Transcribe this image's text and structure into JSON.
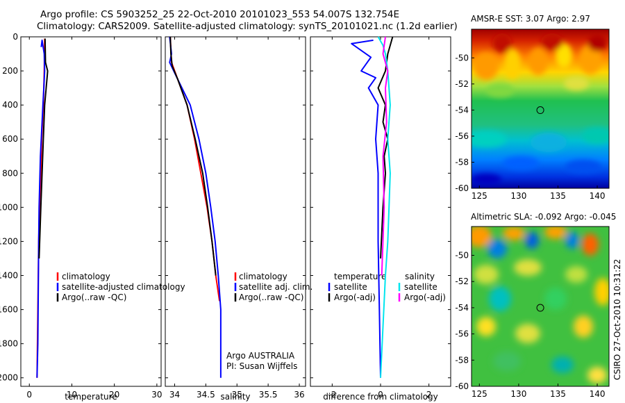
{
  "title": {
    "line1": "Argo profile: CS 5903252_25 22-Oct-2010 20101023_553 54.007S 132.754E",
    "line2": "Climatology: CARS2009. Satellite-adjusted climatology: synTS_20101021.nc (1.2d earlier)"
  },
  "side_label": "CSIRO 27-Oct-2010 10:31:22",
  "colors": {
    "climatology": "#ff0000",
    "satellite": "#0000ff",
    "argo": "#000000",
    "salinity_satellite": "#00e5ee",
    "salinity_argo": "#ff00ff",
    "marker": "#000000"
  },
  "chart_data": [
    {
      "type": "line",
      "panel": "temperature",
      "xlabel": "temperature",
      "ylabel": "",
      "xlim": [
        -2,
        31
      ],
      "ylim": [
        2050,
        0
      ],
      "xticks": [
        0,
        10,
        20,
        30
      ],
      "yticks": [
        0,
        200,
        400,
        600,
        800,
        1000,
        1200,
        1400,
        1600,
        1800,
        2000
      ],
      "series": [
        {
          "name": "climatology",
          "x": [
            3.6,
            3.5,
            3.4,
            3.3,
            3.1,
            2.9,
            2.7,
            2.4,
            2.2,
            2.1,
            2.0,
            1.9,
            1.8
          ],
          "y": [
            10,
            200,
            300,
            400,
            500,
            600,
            800,
            1000,
            1200,
            1400,
            1600,
            1800,
            2000
          ]
        },
        {
          "name": "satellite-adjusted climatology",
          "x": [
            2.8,
            3.0,
            3.5,
            3.6,
            3.4,
            3.2,
            3.0,
            2.6,
            2.3,
            2.2,
            2.1,
            2.0,
            1.8
          ],
          "y": [
            60,
            20,
            100,
            200,
            300,
            400,
            500,
            700,
            1000,
            1200,
            1500,
            1800,
            2000
          ]
        },
        {
          "name": "Argo(..raw -QC)",
          "x": [
            3.7,
            3.8,
            4.3,
            4.2,
            3.6,
            3.3,
            3.0,
            2.7,
            2.3
          ],
          "y": [
            10,
            150,
            200,
            230,
            400,
            600,
            800,
            1000,
            1300
          ]
        }
      ],
      "legend": {
        "position": "lower-right",
        "entries": [
          "climatology",
          "satellite-adjusted climatology",
          "Argo(..raw -QC)"
        ]
      }
    },
    {
      "type": "line",
      "panel": "salinity",
      "xlabel": "salinity",
      "xlim": [
        33.85,
        36.1
      ],
      "ylim": [
        2050,
        0
      ],
      "xticks": [
        34,
        34.5,
        35,
        35.5,
        36
      ],
      "series": [
        {
          "name": "climatology",
          "x": [
            33.93,
            33.95,
            34.05,
            34.2,
            34.32,
            34.42,
            34.52,
            34.6,
            34.66,
            34.72
          ],
          "y": [
            0,
            150,
            250,
            400,
            600,
            800,
            1000,
            1200,
            1400,
            1550
          ]
        },
        {
          "name": "satellite adj. clim.",
          "x": [
            33.92,
            33.95,
            33.92,
            34.05,
            34.25,
            34.39,
            34.5,
            34.58,
            34.65,
            34.7,
            34.74,
            34.74,
            34.74
          ],
          "y": [
            0,
            100,
            150,
            250,
            400,
            600,
            800,
            1000,
            1200,
            1400,
            1600,
            1800,
            2000
          ]
        },
        {
          "name": "Argo(..raw -QC)",
          "x": [
            33.93,
            33.94,
            33.96,
            34.05,
            34.2,
            34.33,
            34.45,
            34.53,
            34.6,
            34.66
          ],
          "y": [
            0,
            100,
            170,
            250,
            400,
            600,
            800,
            1000,
            1200,
            1400
          ]
        }
      ],
      "legend": {
        "position": "lower-right",
        "entries": [
          "climatology",
          "satellite adj. clim.",
          "Argo(..raw -QC)"
        ]
      },
      "annotations": [
        "Argo AUSTRALIA",
        "PI: Susan Wijffels"
      ]
    },
    {
      "type": "line",
      "panel": "difference",
      "xlabel": "difference from climatology",
      "xlim": [
        -2.9,
        2.9
      ],
      "ylim": [
        2050,
        0
      ],
      "xticks": [
        -2,
        0,
        2
      ],
      "series": [
        {
          "name": "temperature satellite",
          "x": [
            -0.3,
            -1.2,
            -0.4,
            -0.8,
            -0.2,
            -0.5,
            -0.1,
            -0.2,
            -0.1,
            -0.1,
            -0.05,
            0.0
          ],
          "y": [
            20,
            40,
            120,
            200,
            240,
            300,
            400,
            600,
            800,
            1200,
            1600,
            2000
          ]
        },
        {
          "name": "temperature Argo(-adj)",
          "x": [
            0.5,
            0.3,
            0.2,
            -0.1,
            0.2,
            0.1,
            0.3,
            0.15,
            0.2,
            0.1,
            0.0
          ],
          "y": [
            0,
            100,
            200,
            300,
            400,
            500,
            600,
            700,
            800,
            1000,
            1300
          ]
        },
        {
          "name": "salinity satellite",
          "x": [
            -0.1,
            0.1,
            0.2,
            0.3,
            0.4,
            0.3,
            0.4,
            0.35,
            0.3,
            0.2,
            0.1,
            0.0
          ],
          "y": [
            0,
            50,
            100,
            200,
            400,
            600,
            800,
            1000,
            1200,
            1400,
            1700,
            2000
          ]
        },
        {
          "name": "salinity Argo(-adj)",
          "x": [
            0.2,
            0.1,
            0.3,
            0.2,
            0.25,
            0.1,
            0.15,
            0.05
          ],
          "y": [
            0,
            100,
            200,
            300,
            500,
            700,
            1000,
            1400
          ]
        }
      ],
      "legend": {
        "position": "lower-center",
        "temperature_header": "temperature",
        "salinity_header": "salinity",
        "entries": [
          "satellite",
          "Argo(-adj)",
          "satellite",
          "Argo(-adj)"
        ]
      }
    },
    {
      "type": "heatmap",
      "panel": "sst",
      "title": "AMSR-E SST: 3.07 Argo: 2.97",
      "xlim": [
        124,
        141.5
      ],
      "ylim": [
        -60,
        -47.8
      ],
      "xticks": [
        125,
        130,
        135,
        140
      ],
      "yticks": [
        -50,
        -52,
        -54,
        -56,
        -58,
        -60
      ],
      "marker": {
        "lon": 132.754,
        "lat": -54.007
      }
    },
    {
      "type": "heatmap",
      "panel": "sla",
      "title": "Altimetric SLA: -0.092 Argo: -0.045",
      "xlim": [
        124,
        141.5
      ],
      "ylim": [
        -60,
        -47.8
      ],
      "xticks": [
        125,
        130,
        135,
        140
      ],
      "yticks": [
        -50,
        -52,
        -54,
        -56,
        -58,
        -60
      ],
      "marker": {
        "lon": 132.754,
        "lat": -54.007
      }
    }
  ]
}
